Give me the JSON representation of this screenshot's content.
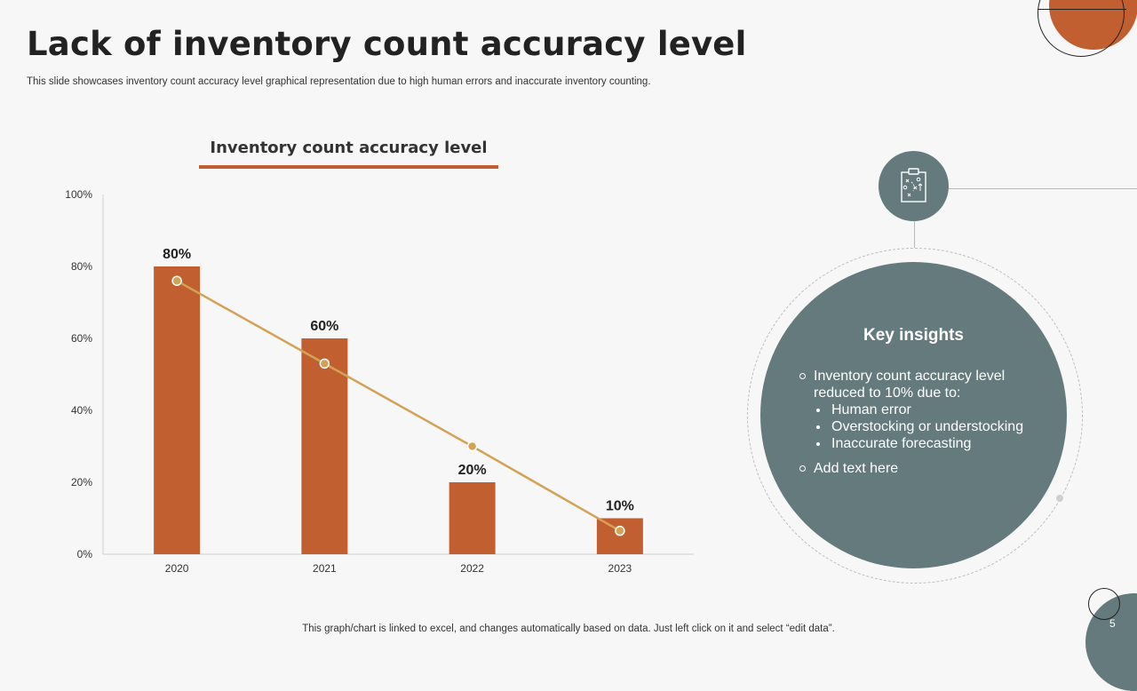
{
  "slide": {
    "title": "Lack of inventory count accuracy level",
    "subtitle": "This slide showcases inventory count accuracy level graphical representation due to high human errors and inaccurate inventory counting.",
    "footer": "This graph/chart is linked to excel,  and changes automatically based on data. Just left click on it and select “edit data”.",
    "page_number": "5"
  },
  "colors": {
    "accent": "#c15f30",
    "line": "#d4a257",
    "panel": "#647a7c",
    "background": "#f7f7f7"
  },
  "chart_data": {
    "type": "bar",
    "title": "Inventory count accuracy level",
    "categories": [
      "2020",
      "2021",
      "2022",
      "2023"
    ],
    "series": [
      {
        "values": [
          80,
          60,
          20,
          10
        ],
        "data_labels": [
          "80%",
          "60%",
          "20%",
          "10%"
        ],
        "color": "#c15f30"
      }
    ],
    "trendline": {
      "type": "line",
      "values": [
        76,
        53,
        30,
        6.5
      ],
      "color": "#d4a257"
    },
    "ylim": [
      0,
      100
    ],
    "yticks": [
      0,
      20,
      40,
      60,
      80,
      100
    ],
    "ytick_labels": [
      "0%",
      "20%",
      "40%",
      "60%",
      "80%",
      "100%"
    ],
    "grid": false
  },
  "insights": {
    "icon": "clipboard-strategy-icon",
    "title": "Key insights",
    "items": [
      {
        "text": "Inventory  count accuracy level reduced to 10% due to:",
        "sub": [
          "Human error",
          "Overstocking  or understocking",
          "Inaccurate  forecasting"
        ]
      },
      {
        "text": "Add text here",
        "sub": []
      }
    ]
  }
}
